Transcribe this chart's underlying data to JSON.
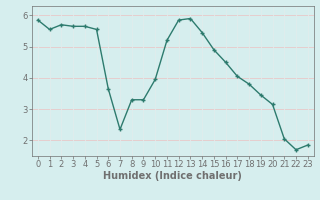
{
  "x": [
    0,
    1,
    2,
    3,
    4,
    5,
    6,
    7,
    8,
    9,
    10,
    11,
    12,
    13,
    14,
    15,
    16,
    17,
    18,
    19,
    20,
    21,
    22,
    23
  ],
  "y": [
    5.85,
    5.55,
    5.7,
    5.65,
    5.65,
    5.55,
    3.65,
    2.35,
    3.3,
    3.3,
    3.95,
    5.2,
    5.85,
    5.9,
    5.45,
    4.9,
    4.5,
    4.05,
    3.8,
    3.45,
    3.15,
    2.05,
    1.7,
    1.85
  ],
  "line_color": "#2d7b6e",
  "marker": "+",
  "marker_size": 3.5,
  "marker_linewidth": 1.0,
  "background_color": "#d6eeee",
  "grid_h_color": "#e8c8c8",
  "grid_v_color": "#e0ecec",
  "xlabel": "Humidex (Indice chaleur)",
  "xlim": [
    -0.5,
    23.5
  ],
  "ylim": [
    1.5,
    6.3
  ],
  "yticks": [
    2,
    3,
    4,
    5,
    6
  ],
  "xticks": [
    0,
    1,
    2,
    3,
    4,
    5,
    6,
    7,
    8,
    9,
    10,
    11,
    12,
    13,
    14,
    15,
    16,
    17,
    18,
    19,
    20,
    21,
    22,
    23
  ],
  "xlabel_fontsize": 7,
  "tick_fontsize": 6,
  "line_width": 1.0,
  "spine_color": "#707070"
}
